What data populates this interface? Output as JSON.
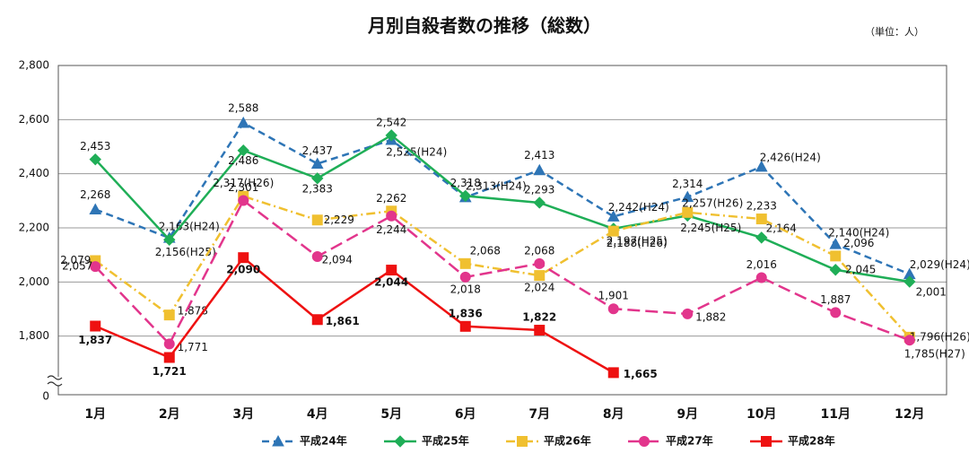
{
  "chart_data": {
    "type": "line",
    "title": "月別自殺者数の推移（総数）",
    "unit_note": "（単位：人）",
    "categories": [
      "1月",
      "2月",
      "3月",
      "4月",
      "5月",
      "6月",
      "7月",
      "8月",
      "9月",
      "10月",
      "11月",
      "12月"
    ],
    "ylim": [
      0,
      2800
    ],
    "ybreak": [
      0,
      1600
    ],
    "yticks": [
      0,
      {
        "value": 1800,
        "label": "1,800"
      },
      {
        "value": 2000,
        "label": "2,000"
      },
      {
        "value": 2200,
        "label": "2,200"
      },
      {
        "value": 2400,
        "label": "2,400"
      },
      {
        "value": 2600,
        "label": "2,600"
      },
      {
        "value": 2800,
        "label": "2,800"
      }
    ],
    "grid": true,
    "legend": "bottom",
    "series": [
      {
        "name": "平成24年",
        "color": "#2e75b6",
        "dash": "8,5",
        "marker": "triangle",
        "values": [
          2268,
          2163,
          2588,
          2437,
          2525,
          2313,
          2413,
          2242,
          2314,
          2426,
          2140,
          2029
        ],
        "value_labels": [
          "2,268",
          "2,163(H24)",
          "2,588",
          "2,437",
          "2,525(H24)",
          "2,313(H24)",
          "2,413",
          "2,242(H24)",
          "2,314",
          "2,426(H24)",
          "2,140(H24)",
          "2,029(H24)"
        ]
      },
      {
        "name": "平成25年",
        "color": "#1fae57",
        "dash": "none",
        "marker": "diamond",
        "values": [
          2453,
          2156,
          2486,
          2383,
          2542,
          2318,
          2293,
          2197,
          2245,
          2164,
          2045,
          2001
        ],
        "value_labels": [
          "2,453",
          "2,156(H25)",
          "2,486",
          "2,383",
          "2,542",
          "2,318",
          "2,293",
          "2,197(H25)",
          "2,245(H25)",
          "2,164",
          "2,045",
          "2,001"
        ]
      },
      {
        "name": "平成26年",
        "color": "#f0c030",
        "dash": "10,4,2,4",
        "marker": "square",
        "values": [
          2079,
          1878,
          2317,
          2229,
          2262,
          2068,
          2024,
          2188,
          2257,
          2233,
          2096,
          1796
        ],
        "value_labels": [
          "2,079",
          "1,878",
          "2,317(H26)",
          "2,229",
          "2,262",
          "2,068",
          "2,024",
          "2,188(H26)",
          "2,257(H26)",
          "2,233",
          "2,096",
          "1,796(H26)"
        ]
      },
      {
        "name": "平成27年",
        "color": "#e2358c",
        "dash": "14,6",
        "marker": "circle",
        "values": [
          2057,
          1771,
          2301,
          2094,
          2244,
          2018,
          2068,
          1901,
          1882,
          2016,
          1887,
          1785
        ],
        "value_labels": [
          "2,057",
          "1,771",
          "2,301",
          "2,094",
          "2,244",
          "2,018",
          "2,068",
          "1,901",
          "1,882",
          "2,016",
          "1,887",
          "1,785(H27)"
        ]
      },
      {
        "name": "平成28年",
        "color": "#ee1111",
        "dash": "none",
        "marker": "square",
        "bold_labels": true,
        "values": [
          1837,
          1721,
          2090,
          1861,
          2044,
          1836,
          1822,
          1665,
          null,
          null,
          null,
          null
        ],
        "value_labels": [
          "1,837",
          "1,721",
          "2,090",
          "1,861",
          "2,044",
          "1,836",
          "1,822",
          "1,665",
          null,
          null,
          null,
          null
        ]
      }
    ]
  }
}
